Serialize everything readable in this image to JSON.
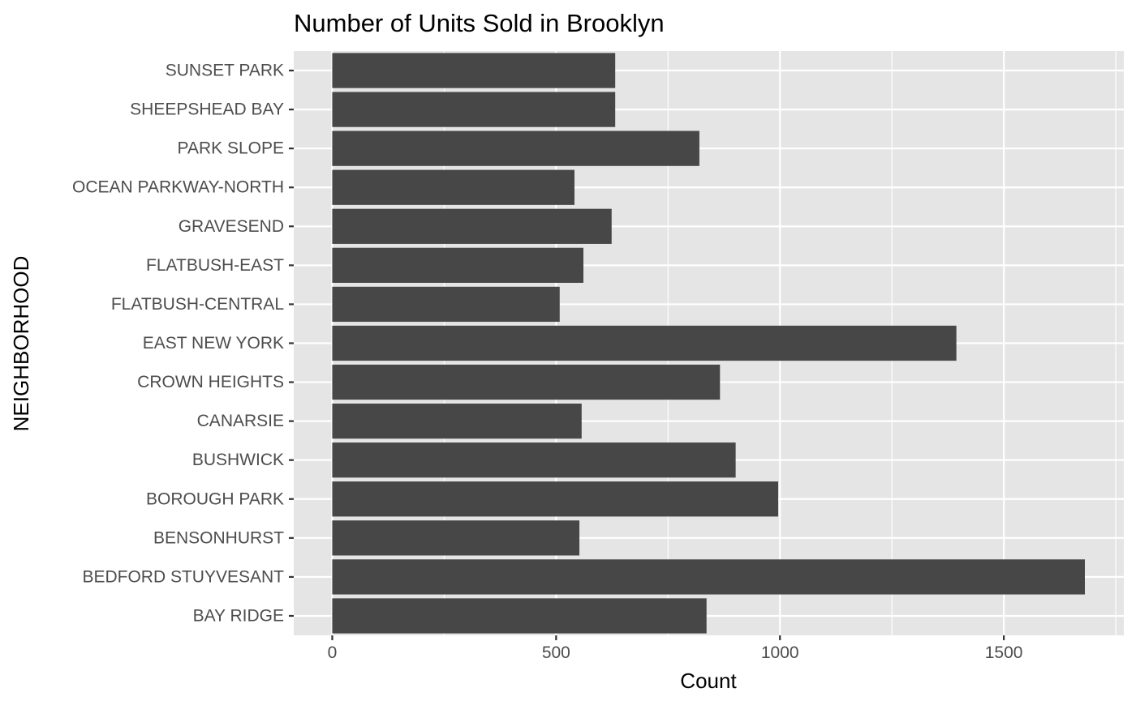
{
  "chart_data": {
    "type": "bar",
    "orientation": "horizontal",
    "title": "Number of Units Sold in Brooklyn",
    "xlabel": "Count",
    "ylabel": "NEIGHBORHOOD",
    "categories": [
      "BAY RIDGE",
      "BEDFORD STUYVESANT",
      "BENSONHURST",
      "BOROUGH PARK",
      "BUSHWICK",
      "CANARSIE",
      "CROWN HEIGHTS",
      "EAST NEW YORK",
      "FLATBUSH-CENTRAL",
      "FLATBUSH-EAST",
      "GRAVESEND",
      "OCEAN PARKWAY-NORTH",
      "PARK SLOPE",
      "SHEEPSHEAD BAY",
      "SUNSET PARK"
    ],
    "values": [
      836,
      1681,
      552,
      996,
      901,
      557,
      866,
      1394,
      508,
      561,
      624,
      541,
      820,
      632,
      632
    ],
    "x_ticks": [
      0,
      500,
      1000,
      1500
    ],
    "xlim": [
      -86,
      1768
    ],
    "grid": true,
    "bar_color": "#474747",
    "panel_color": "#e5e5e5",
    "grid_color": "#ffffff"
  }
}
